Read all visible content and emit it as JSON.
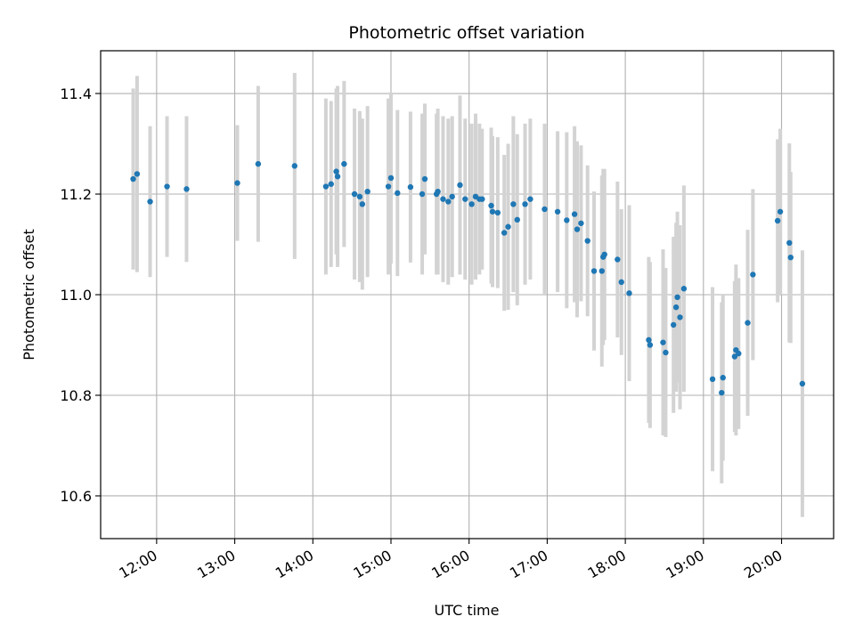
{
  "chart_data": {
    "type": "scatter",
    "title": "Photometric offset variation",
    "xlabel": "UTC time",
    "ylabel": "Photometric offset",
    "x_unit": "UTC time (HH:MM)",
    "xlim": [
      "11:17",
      "20:40"
    ],
    "ylim": [
      10.515,
      11.485
    ],
    "x_ticks": [
      "12:00",
      "13:00",
      "14:00",
      "15:00",
      "16:00",
      "17:00",
      "18:00",
      "19:00",
      "20:00"
    ],
    "y_ticks": [
      "10.6",
      "10.8",
      "11.0",
      "11.2",
      "11.4"
    ],
    "grid": true,
    "legend": "none",
    "colors": {
      "point": "#1f77b4",
      "errorbar": "#d3d3d3",
      "grid": "#b0b0b0"
    },
    "series": [
      {
        "points": [
          {
            "x": "11:42",
            "y": 11.23,
            "err": 0.18
          },
          {
            "x": "11:45",
            "y": 11.24,
            "err": 0.195
          },
          {
            "x": "11:55",
            "y": 11.185,
            "err": 0.15
          },
          {
            "x": "12:08",
            "y": 11.215,
            "err": 0.14
          },
          {
            "x": "12:23",
            "y": 11.21,
            "err": 0.145
          },
          {
            "x": "13:02",
            "y": 11.222,
            "err": 0.115
          },
          {
            "x": "13:18",
            "y": 11.26,
            "err": 0.155
          },
          {
            "x": "13:46",
            "y": 11.256,
            "err": 0.185
          },
          {
            "x": "14:10",
            "y": 11.215,
            "err": 0.175
          },
          {
            "x": "14:14",
            "y": 11.22,
            "err": 0.165
          },
          {
            "x": "14:18",
            "y": 11.245,
            "err": 0.165
          },
          {
            "x": "14:19",
            "y": 11.235,
            "err": 0.18
          },
          {
            "x": "14:24",
            "y": 11.26,
            "err": 0.165
          },
          {
            "x": "14:32",
            "y": 11.2,
            "err": 0.17
          },
          {
            "x": "14:36",
            "y": 11.195,
            "err": 0.17
          },
          {
            "x": "14:38",
            "y": 11.18,
            "err": 0.17
          },
          {
            "x": "14:42",
            "y": 11.205,
            "err": 0.17
          },
          {
            "x": "14:58",
            "y": 11.215,
            "err": 0.175
          },
          {
            "x": "15:00",
            "y": 11.232,
            "err": 0.17
          },
          {
            "x": "15:05",
            "y": 11.202,
            "err": 0.165
          },
          {
            "x": "15:15",
            "y": 11.214,
            "err": 0.15
          },
          {
            "x": "15:24",
            "y": 11.2,
            "err": 0.16
          },
          {
            "x": "15:26",
            "y": 11.23,
            "err": 0.15
          },
          {
            "x": "15:35",
            "y": 11.2,
            "err": 0.16
          },
          {
            "x": "15:36",
            "y": 11.205,
            "err": 0.165
          },
          {
            "x": "15:40",
            "y": 11.19,
            "err": 0.165
          },
          {
            "x": "15:44",
            "y": 11.185,
            "err": 0.165
          },
          {
            "x": "15:47",
            "y": 11.195,
            "err": 0.16
          },
          {
            "x": "15:53",
            "y": 11.218,
            "err": 0.178
          },
          {
            "x": "15:57",
            "y": 11.19,
            "err": 0.16
          },
          {
            "x": "16:02",
            "y": 11.18,
            "err": 0.16
          },
          {
            "x": "16:05",
            "y": 11.195,
            "err": 0.165
          },
          {
            "x": "16:08",
            "y": 11.19,
            "err": 0.15
          },
          {
            "x": "16:10",
            "y": 11.19,
            "err": 0.14
          },
          {
            "x": "16:17",
            "y": 11.177,
            "err": 0.155
          },
          {
            "x": "16:18",
            "y": 11.165,
            "err": 0.15
          },
          {
            "x": "16:22",
            "y": 11.163,
            "err": 0.15
          },
          {
            "x": "16:27",
            "y": 11.123,
            "err": 0.155
          },
          {
            "x": "16:30",
            "y": 11.135,
            "err": 0.165
          },
          {
            "x": "16:34",
            "y": 11.18,
            "err": 0.175
          },
          {
            "x": "16:37",
            "y": 11.149,
            "err": 0.17
          },
          {
            "x": "16:43",
            "y": 11.18,
            "err": 0.16
          },
          {
            "x": "16:47",
            "y": 11.19,
            "err": 0.16
          },
          {
            "x": "16:58",
            "y": 11.17,
            "err": 0.17
          },
          {
            "x": "17:08",
            "y": 11.165,
            "err": 0.16
          },
          {
            "x": "17:15",
            "y": 11.148,
            "err": 0.175
          },
          {
            "x": "17:21",
            "y": 11.16,
            "err": 0.175
          },
          {
            "x": "17:23",
            "y": 11.13,
            "err": 0.175
          },
          {
            "x": "17:26",
            "y": 11.142,
            "err": 0.155
          },
          {
            "x": "17:31",
            "y": 11.107,
            "err": 0.15
          },
          {
            "x": "17:36",
            "y": 11.047,
            "err": 0.158
          },
          {
            "x": "17:42",
            "y": 11.047,
            "err": 0.19
          },
          {
            "x": "17:43",
            "y": 11.075,
            "err": 0.175
          },
          {
            "x": "17:44",
            "y": 11.08,
            "err": 0.17
          },
          {
            "x": "17:54",
            "y": 11.07,
            "err": 0.155
          },
          {
            "x": "17:57",
            "y": 11.025,
            "err": 0.145
          },
          {
            "x": "18:03",
            "y": 11.003,
            "err": 0.175
          },
          {
            "x": "18:18",
            "y": 10.91,
            "err": 0.165
          },
          {
            "x": "18:19",
            "y": 10.9,
            "err": 0.165
          },
          {
            "x": "18:29",
            "y": 10.905,
            "err": 0.185
          },
          {
            "x": "18:31",
            "y": 10.885,
            "err": 0.168
          },
          {
            "x": "18:37",
            "y": 10.94,
            "err": 0.175
          },
          {
            "x": "18:39",
            "y": 10.975,
            "err": 0.168
          },
          {
            "x": "18:40",
            "y": 10.995,
            "err": 0.17
          },
          {
            "x": "18:42",
            "y": 10.955,
            "err": 0.183
          },
          {
            "x": "18:45",
            "y": 11.012,
            "err": 0.205
          },
          {
            "x": "19:07",
            "y": 10.832,
            "err": 0.183
          },
          {
            "x": "19:14",
            "y": 10.805,
            "err": 0.18
          },
          {
            "x": "19:15",
            "y": 10.835,
            "err": 0.165
          },
          {
            "x": "19:24",
            "y": 10.877,
            "err": 0.15
          },
          {
            "x": "19:25",
            "y": 10.89,
            "err": 0.17
          },
          {
            "x": "19:27",
            "y": 10.883,
            "err": 0.15
          },
          {
            "x": "19:34",
            "y": 10.944,
            "err": 0.185
          },
          {
            "x": "19:38",
            "y": 11.04,
            "err": 0.17
          },
          {
            "x": "19:57",
            "y": 11.147,
            "err": 0.162
          },
          {
            "x": "19:59",
            "y": 11.165,
            "err": 0.165
          },
          {
            "x": "20:06",
            "y": 11.103,
            "err": 0.198
          },
          {
            "x": "20:07",
            "y": 11.074,
            "err": 0.17
          },
          {
            "x": "20:16",
            "y": 10.823,
            "err": 0.265
          }
        ]
      }
    ]
  }
}
